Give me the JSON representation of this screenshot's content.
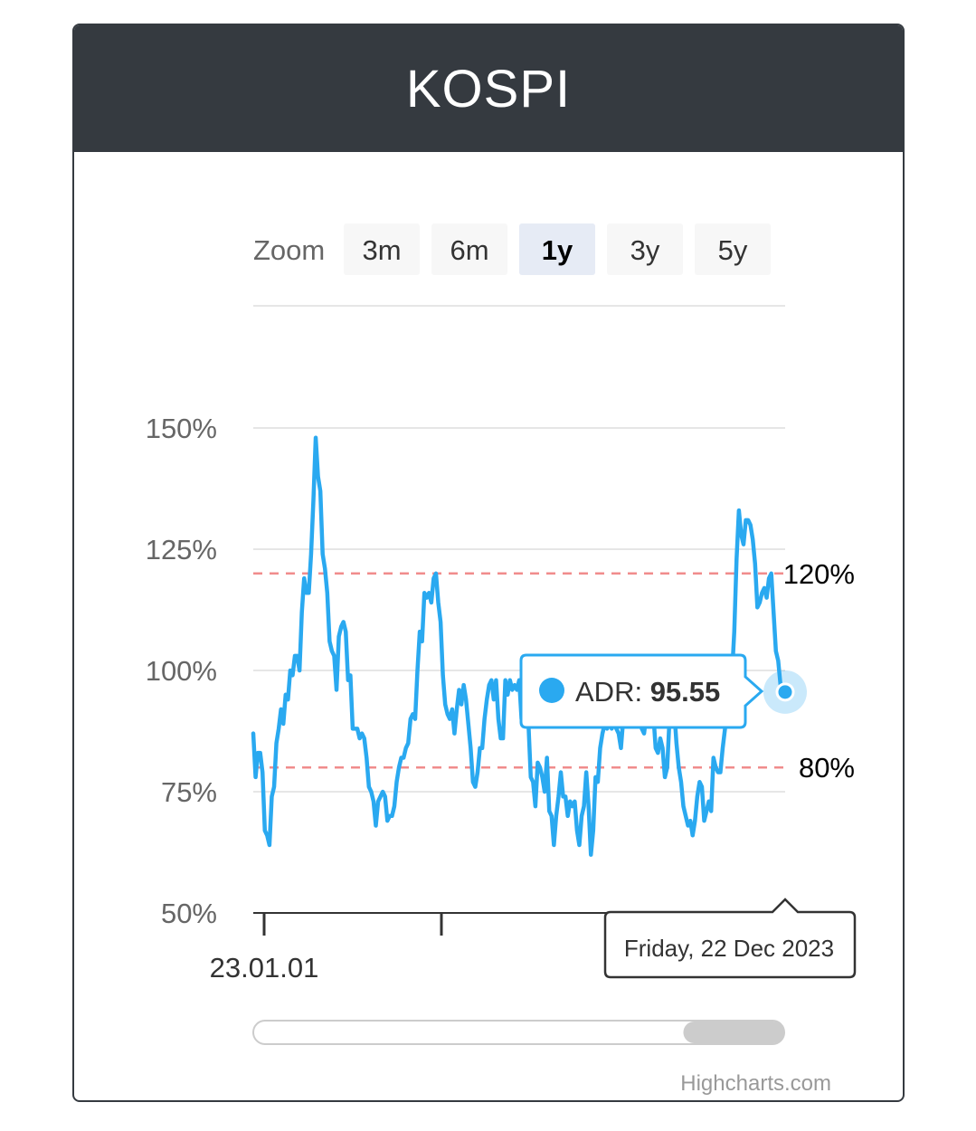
{
  "card": {
    "title": "KOSPI",
    "header_color": "#353a40"
  },
  "range_selector": {
    "label": "Zoom",
    "buttons": [
      "3m",
      "6m",
      "1y",
      "3y",
      "5y"
    ],
    "selected": "1y"
  },
  "tooltip": {
    "series_label": "ADR",
    "value_text": "95.55",
    "date_text": "Friday, 22 Dec 2023"
  },
  "credits": "Highcharts.com",
  "navigator": {
    "window_start": 0.81,
    "window_end": 1.0
  },
  "colors": {
    "line": "#2aa9f0",
    "threshold": "#f08c8c",
    "grid": "#e6e6e6",
    "axis": "#333333"
  },
  "chart_data": {
    "type": "line",
    "series": [
      {
        "name": "ADR",
        "values": [
          87,
          78,
          83,
          83,
          79,
          67,
          66,
          64,
          74,
          76,
          85,
          88,
          92,
          89,
          95,
          94,
          100,
          99,
          103,
          103,
          100,
          112,
          119,
          116,
          116,
          124,
          135,
          148,
          140,
          137,
          124,
          121,
          116,
          106,
          104,
          103,
          96,
          107,
          109,
          110,
          108,
          98,
          99,
          88,
          88,
          88,
          86,
          87,
          86,
          82,
          76,
          75,
          73,
          68,
          73,
          74,
          75,
          74,
          69,
          70,
          70,
          72,
          77,
          80,
          82,
          82,
          84,
          85,
          90,
          91,
          90,
          100,
          108,
          106,
          116,
          115,
          116,
          114,
          119,
          120,
          114,
          110,
          99,
          93,
          91,
          90,
          92,
          87,
          92,
          96,
          93,
          97,
          94,
          89,
          84,
          77,
          76,
          79,
          84,
          84,
          90,
          94,
          97,
          98,
          94,
          98,
          90,
          86,
          86,
          98,
          95,
          98,
          96,
          97,
          96,
          98,
          90,
          98,
          91,
          89,
          78,
          77,
          72,
          81,
          80,
          78,
          75,
          82,
          71,
          70,
          64,
          70,
          74,
          79,
          74,
          74,
          70,
          73,
          72,
          73,
          67,
          64,
          70,
          72,
          79,
          72,
          62,
          67,
          78,
          77,
          84,
          87,
          89,
          88,
          90,
          88,
          90,
          88,
          87,
          84,
          90,
          95,
          97,
          99,
          99,
          93,
          91,
          90,
          88,
          87,
          91,
          91,
          94,
          91,
          84,
          83,
          86,
          84,
          78,
          80,
          90,
          96,
          92,
          85,
          80,
          77,
          72,
          70,
          68,
          69,
          66,
          69,
          74,
          77,
          76,
          69,
          71,
          73,
          71,
          82,
          80,
          79,
          79,
          84,
          88,
          96,
          101,
          99,
          108,
          123,
          133,
          128,
          126,
          131,
          131,
          130,
          127,
          122,
          113,
          114,
          116,
          117,
          115,
          119,
          120,
          112,
          104,
          102,
          97,
          96,
          95.55
        ],
        "end_label": "ADR: 95.55"
      }
    ],
    "x_start_date": "2023-01-01",
    "x_end_date": "2023-12-22",
    "x_tick_labels": [
      "23.01.01"
    ],
    "yaxis": {
      "ticks": [
        50,
        75,
        100,
        125,
        150
      ],
      "tick_labels": [
        "50%",
        "75%",
        "100%",
        "125%",
        "150%"
      ],
      "min": 50,
      "max": 150
    },
    "plot_lines": [
      {
        "value": 120,
        "label": "120%"
      },
      {
        "value": 80,
        "label": "80%"
      }
    ],
    "grid": true,
    "legend": "none"
  }
}
